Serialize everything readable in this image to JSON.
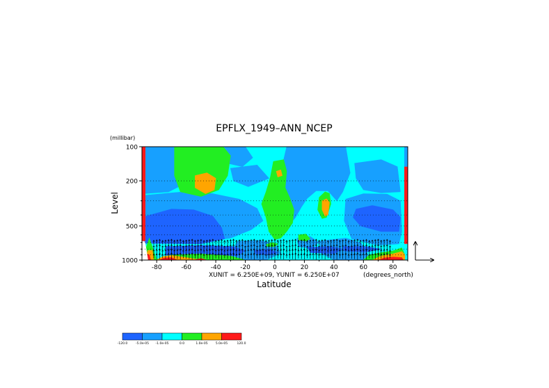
{
  "chart_data": {
    "type": "heatmap",
    "title": "EPFLX_1949–ANN_NCEP",
    "xlabel": "Latitude",
    "ylabel": "Level",
    "y_unit": "(millibar)",
    "x_unit": "(degrees_north)",
    "vector_units": "XUNIT = 6.250E+09, YUNIT = 6.250E+07",
    "xlim": [
      -90,
      90
    ],
    "ylim": [
      1000,
      100
    ],
    "y_scale": "log",
    "x_ticks": [
      -80,
      -60,
      -40,
      -20,
      0,
      20,
      40,
      60,
      80
    ],
    "x_tick_labels": [
      "-80",
      "-60",
      "-40",
      "-20",
      "0",
      "20",
      "40",
      "60",
      "80"
    ],
    "y_ticks": [
      100,
      200,
      500,
      1000
    ],
    "y_tick_labels": [
      "100",
      "200",
      "500",
      "1000"
    ],
    "grid": "dotted horizontal",
    "legend": {
      "placement": "bottom-left",
      "boundaries": [
        "-120.0",
        "-5.0e-05",
        "-1.0e-05",
        "0.0",
        "1.0e-05",
        "5.0e-05",
        "120.0"
      ],
      "colors": [
        "#1e64ff",
        "#17a0ff",
        "#00ffff",
        "#22ee22",
        "#ffa500",
        "#ff1a1a"
      ]
    },
    "background_color": "#00ffff",
    "regions": [
      {
        "color": "#17a0ff",
        "polys": [
          [
            [
              -70,
              100
            ],
            [
              -55,
              100
            ],
            [
              -55,
              160
            ],
            [
              -62,
              215
            ],
            [
              -72,
              250
            ],
            [
              -90,
              260
            ],
            [
              -90,
              100
            ]
          ],
          [
            [
              -38,
              100
            ],
            [
              -20,
              100
            ],
            [
              -15,
              125
            ],
            [
              -22,
              150
            ],
            [
              -32,
              140
            ],
            [
              -37,
              120
            ]
          ],
          [
            [
              -30,
              155
            ],
            [
              -12,
              145
            ],
            [
              -4,
              190
            ],
            [
              -18,
              225
            ],
            [
              -28,
              200
            ]
          ],
          [
            [
              -90,
              270
            ],
            [
              -62,
              250
            ],
            [
              -42,
              260
            ],
            [
              -24,
              290
            ],
            [
              -12,
              350
            ],
            [
              -8,
              450
            ],
            [
              -16,
              540
            ],
            [
              -30,
              640
            ],
            [
              -60,
              710
            ],
            [
              -90,
              720
            ]
          ],
          [
            [
              8,
              100
            ],
            [
              48,
              100
            ],
            [
              51,
              170
            ],
            [
              46,
              250
            ],
            [
              42,
              300
            ],
            [
              36,
              245
            ],
            [
              28,
              245
            ],
            [
              22,
              285
            ],
            [
              18,
              340
            ],
            [
              14,
              420
            ],
            [
              8,
              520
            ],
            [
              2,
              560
            ],
            [
              0,
              350
            ],
            [
              2,
              200
            ],
            [
              6,
              130
            ]
          ],
          [
            [
              54,
              140
            ],
            [
              72,
              130
            ],
            [
              83,
              150
            ],
            [
              85,
              250
            ],
            [
              72,
              255
            ],
            [
              60,
              240
            ],
            [
              55,
              190
            ]
          ],
          [
            [
              48,
              290
            ],
            [
              60,
              260
            ],
            [
              76,
              262
            ],
            [
              85,
              300
            ],
            [
              86,
              560
            ],
            [
              84,
              720
            ],
            [
              70,
              740
            ],
            [
              52,
              650
            ],
            [
              47,
              450
            ]
          ],
          [
            [
              -25,
              680
            ],
            [
              -10,
              670
            ],
            [
              0,
              720
            ],
            [
              4,
              870
            ],
            [
              -6,
              1000
            ],
            [
              -24,
              1000
            ],
            [
              -30,
              860
            ]
          ],
          [
            [
              15,
              640
            ],
            [
              24,
              620
            ],
            [
              30,
              700
            ],
            [
              24,
              790
            ],
            [
              16,
              760
            ]
          ],
          [
            [
              30,
              680
            ],
            [
              48,
              640
            ],
            [
              58,
              700
            ],
            [
              62,
              820
            ],
            [
              64,
              1000
            ],
            [
              40,
              1000
            ],
            [
              32,
              880
            ]
          ]
        ]
      },
      {
        "color": "#1e64ff",
        "polys": [
          [
            [
              -90,
              420
            ],
            [
              -70,
              355
            ],
            [
              -55,
              360
            ],
            [
              -42,
              410
            ],
            [
              -36,
              520
            ],
            [
              -34,
              650
            ],
            [
              -50,
              720
            ],
            [
              -72,
              715
            ],
            [
              -90,
              700
            ]
          ],
          [
            [
              55,
              355
            ],
            [
              66,
              330
            ],
            [
              80,
              360
            ],
            [
              85,
              420
            ],
            [
              84,
              560
            ],
            [
              72,
              560
            ],
            [
              58,
              500
            ],
            [
              53,
              420
            ]
          ],
          [
            [
              -74,
              760
            ],
            [
              -50,
              740
            ],
            [
              -28,
              760
            ],
            [
              -20,
              830
            ],
            [
              -26,
              920
            ],
            [
              -50,
              930
            ],
            [
              -74,
              905
            ]
          ],
          [
            [
              -14,
              820
            ],
            [
              -4,
              800
            ],
            [
              2,
              860
            ],
            [
              -4,
              900
            ],
            [
              -13,
              880
            ]
          ],
          [
            [
              22,
              770
            ],
            [
              38,
              760
            ],
            [
              46,
              800
            ],
            [
              40,
              880
            ],
            [
              24,
              860
            ]
          ],
          [
            [
              46,
              760
            ],
            [
              62,
              760
            ],
            [
              72,
              800
            ],
            [
              62,
              850
            ],
            [
              47,
              830
            ]
          ]
        ]
      },
      {
        "color": "#22ee22",
        "polys": [
          [
            [
              -68,
              100
            ],
            [
              -35,
              100
            ],
            [
              -30,
              120
            ],
            [
              -32,
              180
            ],
            [
              -38,
              240
            ],
            [
              -50,
              275
            ],
            [
              -64,
              250
            ],
            [
              -68,
              180
            ]
          ],
          [
            [
              -6,
              730
            ],
            [
              -2,
              700
            ],
            [
              2,
              720
            ],
            [
              0,
              760
            ],
            [
              -5,
              760
            ]
          ],
          [
            [
              -1,
              135
            ],
            [
              6,
              130
            ],
            [
              8,
              165
            ],
            [
              7,
              230
            ],
            [
              10,
              280
            ],
            [
              13,
              360
            ],
            [
              12,
              470
            ],
            [
              8,
              560
            ],
            [
              4,
              640
            ],
            [
              0,
              660
            ],
            [
              -4,
              560
            ],
            [
              -6,
              420
            ],
            [
              -9,
              320
            ],
            [
              -6,
              250
            ],
            [
              -3,
              185
            ]
          ],
          [
            [
              16,
              600
            ],
            [
              21,
              590
            ],
            [
              24,
              650
            ],
            [
              21,
              680
            ],
            [
              16,
              665
            ]
          ],
          [
            [
              30,
              280
            ],
            [
              34,
              250
            ],
            [
              37,
              258
            ],
            [
              38,
              320
            ],
            [
              35,
              420
            ],
            [
              32,
              430
            ],
            [
              29,
              360
            ]
          ],
          [
            [
              -90,
              1000
            ],
            [
              -85,
              640
            ],
            [
              -80,
              1000
            ]
          ],
          [
            [
              -82,
              1000
            ],
            [
              -70,
              900
            ],
            [
              -50,
              880
            ],
            [
              -30,
              920
            ],
            [
              -20,
              1000
            ]
          ],
          [
            [
              60,
              1000
            ],
            [
              64,
              900
            ],
            [
              72,
              860
            ],
            [
              80,
              830
            ],
            [
              86,
              780
            ],
            [
              88,
              900
            ],
            [
              88,
              1000
            ]
          ]
        ]
      },
      {
        "color": "#ffa500",
        "polys": [
          [
            [
              -54,
              180
            ],
            [
              -46,
              170
            ],
            [
              -40,
              190
            ],
            [
              -41,
              240
            ],
            [
              -47,
              260
            ],
            [
              -54,
              230
            ]
          ],
          [
            [
              32,
              300
            ],
            [
              35,
              288
            ],
            [
              37,
              310
            ],
            [
              36,
              400
            ],
            [
              34,
              410
            ],
            [
              32,
              360
            ]
          ],
          [
            [
              1,
              165
            ],
            [
              4,
              160
            ],
            [
              5,
              180
            ],
            [
              2,
              185
            ]
          ],
          [
            [
              -88,
              1000
            ],
            [
              -86,
              820
            ],
            [
              -83,
              820
            ],
            [
              -82,
              1000
            ]
          ],
          [
            [
              -80,
              1000
            ],
            [
              -76,
              930
            ],
            [
              -70,
              910
            ],
            [
              -60,
              950
            ],
            [
              -50,
              1000
            ]
          ],
          [
            [
              66,
              1000
            ],
            [
              72,
              920
            ],
            [
              80,
              880
            ],
            [
              86,
              840
            ],
            [
              88,
              900
            ],
            [
              88,
              1000
            ]
          ]
        ]
      },
      {
        "color": "#ff1a1a",
        "polys": [
          [
            [
              -88,
              1000
            ],
            [
              -87,
              880
            ],
            [
              -85,
              900
            ],
            [
              -84,
              1000
            ]
          ],
          [
            [
              -78,
              1000
            ],
            [
              -75,
              960
            ],
            [
              -70,
              950
            ],
            [
              -66,
              1000
            ]
          ],
          [
            [
              -55,
              1000
            ],
            [
              -50,
              970
            ],
            [
              -46,
              1000
            ]
          ],
          [
            [
              70,
              1000
            ],
            [
              74,
              960
            ],
            [
              80,
              940
            ],
            [
              86,
              950
            ],
            [
              87,
              1000
            ]
          ]
        ]
      },
      {
        "color": "#ffffff",
        "polys": [
          [
            [
              -90,
              1000
            ],
            [
              -90,
              680
            ],
            [
              -88,
              690
            ],
            [
              -87,
              820
            ],
            [
              -86,
              1000
            ]
          ]
        ]
      }
    ],
    "edge_strips": [
      {
        "edge": "left",
        "color": "#ff1a1a",
        "from": 100,
        "to": 680
      },
      {
        "edge": "right",
        "color": "#ff1a1a",
        "from": 120,
        "to": 720
      },
      {
        "edge": "right-top",
        "color": "#17a0ff",
        "from": 100,
        "to": 150
      }
    ],
    "vectors": {
      "region_pmin": 640,
      "lon_start": -82,
      "lon_end": 78,
      "lon_step": 2,
      "levels": [
        700,
        780,
        850,
        925
      ]
    }
  }
}
